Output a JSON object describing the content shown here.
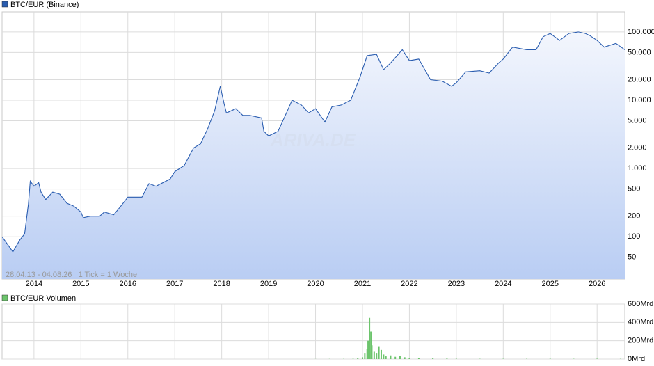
{
  "chart_data": [
    {
      "type": "area",
      "log_y": true,
      "grid": true,
      "annotation": "28.04.13 - 04.08.26   1 Tick = 1 Woche",
      "watermark": "ARIVA.DE",
      "xlim": [
        2013.32,
        2026.59
      ],
      "xticks": [
        2014,
        2015,
        2016,
        2017,
        2018,
        2019,
        2020,
        2021,
        2022,
        2023,
        2024,
        2025,
        2026
      ],
      "ylim": [
        24,
        197000
      ],
      "yticks": [
        {
          "value": 100000,
          "label": "100.000"
        },
        {
          "value": 50000,
          "label": "50.000"
        },
        {
          "value": 20000,
          "label": "20.000"
        },
        {
          "value": 10000,
          "label": "10.000"
        },
        {
          "value": 5000,
          "label": "5.000"
        },
        {
          "value": 2000,
          "label": "2.000"
        },
        {
          "value": 1000,
          "label": "1.000"
        },
        500,
        200,
        100,
        50
      ],
      "x": [
        2013.32,
        2013.45,
        2013.55,
        2013.7,
        2013.8,
        2013.88,
        2013.92,
        2014.0,
        2014.1,
        2014.15,
        2014.25,
        2014.4,
        2014.55,
        2014.7,
        2014.85,
        2015.0,
        2015.05,
        2015.2,
        2015.4,
        2015.5,
        2015.7,
        2015.85,
        2016.0,
        2016.3,
        2016.45,
        2016.6,
        2016.9,
        2017.0,
        2017.2,
        2017.4,
        2017.55,
        2017.7,
        2017.85,
        2017.97,
        2018.05,
        2018.1,
        2018.3,
        2018.45,
        2018.6,
        2018.85,
        2018.9,
        2019.0,
        2019.2,
        2019.4,
        2019.5,
        2019.7,
        2019.85,
        2020.0,
        2020.2,
        2020.35,
        2020.55,
        2020.75,
        2020.95,
        2021.1,
        2021.3,
        2021.45,
        2021.6,
        2021.85,
        2022.0,
        2022.2,
        2022.45,
        2022.7,
        2022.9,
        2023.0,
        2023.2,
        2023.5,
        2023.7,
        2023.9,
        2024.0,
        2024.2,
        2024.5,
        2024.7,
        2024.85,
        2025.0,
        2025.2,
        2025.4,
        2025.6,
        2025.75,
        2025.85,
        2026.0,
        2026.15,
        2026.4,
        2026.59
      ],
      "series": [
        {
          "name": "BTC/EUR (Binance)",
          "color": "#2a5db0",
          "fill_top": "#f3f6fd",
          "fill_bottom": "#b9cdf3",
          "values": [
            100,
            75,
            60,
            90,
            110,
            300,
            650,
            550,
            620,
            450,
            350,
            450,
            420,
            310,
            280,
            230,
            190,
            200,
            200,
            230,
            210,
            280,
            380,
            380,
            600,
            550,
            700,
            900,
            1100,
            2000,
            2300,
            3800,
            7000,
            16000,
            9000,
            6500,
            7500,
            6000,
            6000,
            5500,
            3500,
            3000,
            3500,
            7000,
            10000,
            8500,
            6500,
            7500,
            4800,
            8000,
            8500,
            10000,
            22000,
            45000,
            47000,
            28000,
            35000,
            55000,
            38000,
            40000,
            20000,
            19000,
            16000,
            18000,
            26000,
            27000,
            25000,
            35000,
            40000,
            60000,
            55000,
            55000,
            85000,
            95000,
            75000,
            95000,
            100000,
            95000,
            88000,
            75000,
            60000,
            68000,
            55000
          ]
        }
      ]
    },
    {
      "type": "bar",
      "ylim": [
        0,
        600
      ],
      "yticks": [
        {
          "value": 0,
          "label": "0Mrd"
        },
        {
          "value": 200,
          "label": "200Mrd"
        },
        {
          "value": 400,
          "label": "400Mrd"
        },
        {
          "value": 600,
          "label": "600Mrd"
        }
      ],
      "x": [
        2020.0,
        2020.3,
        2020.6,
        2020.8,
        2020.9,
        2021.0,
        2021.05,
        2021.1,
        2021.12,
        2021.15,
        2021.18,
        2021.2,
        2021.25,
        2021.3,
        2021.35,
        2021.4,
        2021.45,
        2021.5,
        2021.6,
        2021.7,
        2021.8,
        2021.9,
        2022.0,
        2022.2,
        2022.5,
        2022.8,
        2023.0,
        2023.5,
        2024.0,
        2024.5,
        2025.0,
        2025.5,
        2026.0,
        2026.5
      ],
      "series": [
        {
          "name": "BTC/EUR Volumen",
          "color": "#6cc46c",
          "values": [
            1,
            2,
            2,
            3,
            8,
            20,
            60,
            110,
            200,
            450,
            300,
            150,
            80,
            60,
            140,
            100,
            50,
            30,
            40,
            25,
            35,
            20,
            15,
            10,
            12,
            6,
            4,
            3,
            3,
            3,
            4,
            3,
            4,
            3
          ]
        }
      ]
    }
  ]
}
